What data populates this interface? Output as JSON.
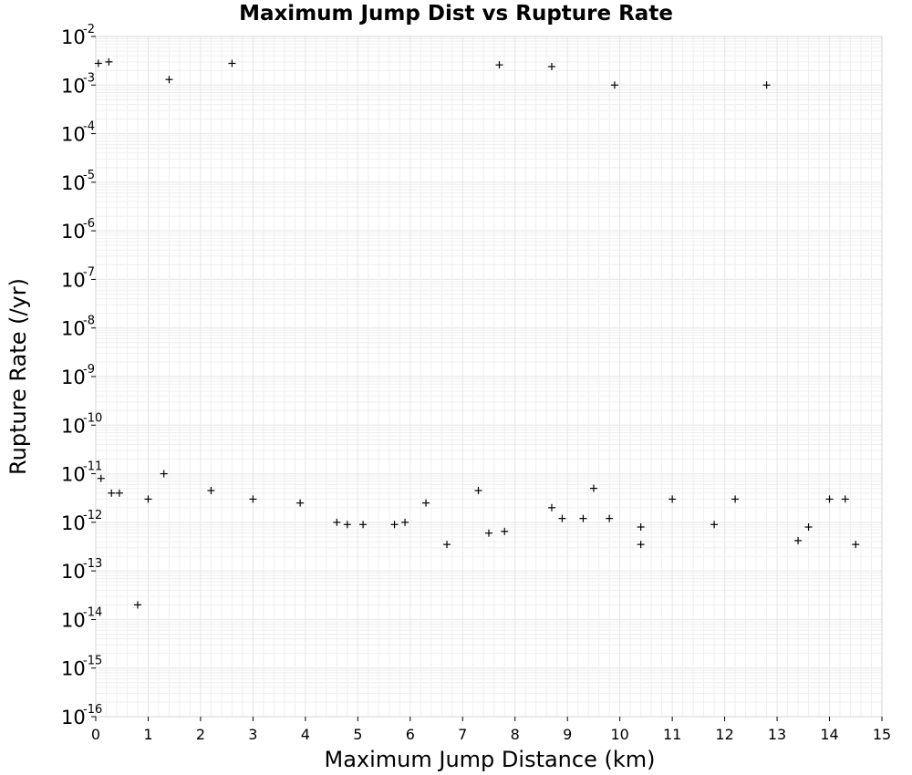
{
  "chart_data": {
    "type": "scatter",
    "title": "Maximum Jump Dist vs Rupture Rate",
    "xlabel": "Maximum Jump Distance (km)",
    "ylabel": "Rupture Rate (/yr)",
    "xlim": [
      0,
      15
    ],
    "ylim": [
      1e-16,
      0.01
    ],
    "y_scale": "log",
    "grid": true,
    "marker": "+",
    "marker_color": "#000000",
    "x_ticks": [
      "0",
      "1",
      "2",
      "3",
      "4",
      "5",
      "6",
      "7",
      "8",
      "9",
      "10",
      "11",
      "12",
      "13",
      "14",
      "15"
    ],
    "y_ticks": [
      {
        "base": "10",
        "exp": "-2"
      },
      {
        "base": "10",
        "exp": "-3"
      },
      {
        "base": "10",
        "exp": "-4"
      },
      {
        "base": "10",
        "exp": "-5"
      },
      {
        "base": "10",
        "exp": "-6"
      },
      {
        "base": "10",
        "exp": "-7"
      },
      {
        "base": "10",
        "exp": "-8"
      },
      {
        "base": "10",
        "exp": "-9"
      },
      {
        "base": "10",
        "exp": "-10"
      },
      {
        "base": "10",
        "exp": "-11"
      },
      {
        "base": "10",
        "exp": "-12"
      },
      {
        "base": "10",
        "exp": "-13"
      },
      {
        "base": "10",
        "exp": "-14"
      },
      {
        "base": "10",
        "exp": "-15"
      },
      {
        "base": "10",
        "exp": "-16"
      }
    ],
    "points": [
      [
        0.05,
        0.0028
      ],
      [
        0.25,
        0.003
      ],
      [
        0.8,
        2e-14
      ],
      [
        2.6,
        0.0028
      ],
      [
        7.7,
        0.0026
      ],
      [
        8.7,
        0.0024
      ],
      [
        12.8,
        0.001
      ],
      [
        1.4,
        0.0013
      ],
      [
        9.9,
        0.001
      ],
      [
        14.5,
        3.5e-13
      ],
      [
        10.4,
        3.5e-13
      ],
      [
        6.7,
        3.5e-13
      ],
      [
        10.4,
        8e-13
      ],
      [
        13.4,
        4.2e-13
      ],
      [
        13.6,
        8e-13
      ],
      [
        7.8,
        6.5e-13
      ],
      [
        7.5,
        6e-13
      ],
      [
        4.6,
        1e-12
      ],
      [
        4.8,
        9e-13
      ],
      [
        5.1,
        9e-13
      ],
      [
        5.7,
        9e-13
      ],
      [
        5.9,
        1e-12
      ],
      [
        9.3,
        1.2e-12
      ],
      [
        8.9,
        1.2e-12
      ],
      [
        9.8,
        1.2e-12
      ],
      [
        11.8,
        9e-13
      ],
      [
        8.7,
        2e-12
      ],
      [
        1.0,
        3e-12
      ],
      [
        11.0,
        3e-12
      ],
      [
        14.3,
        3e-12
      ],
      [
        0.3,
        4e-12
      ],
      [
        0.45,
        4e-12
      ],
      [
        3.9,
        2.5e-12
      ],
      [
        3.0,
        3e-12
      ],
      [
        6.3,
        2.5e-12
      ],
      [
        12.2,
        3e-12
      ],
      [
        14.0,
        3e-12
      ],
      [
        0.1,
        8e-12
      ],
      [
        1.3,
        1e-11
      ],
      [
        2.2,
        4.5e-12
      ],
      [
        7.3,
        4.5e-12
      ],
      [
        9.5,
        5e-12
      ]
    ]
  }
}
